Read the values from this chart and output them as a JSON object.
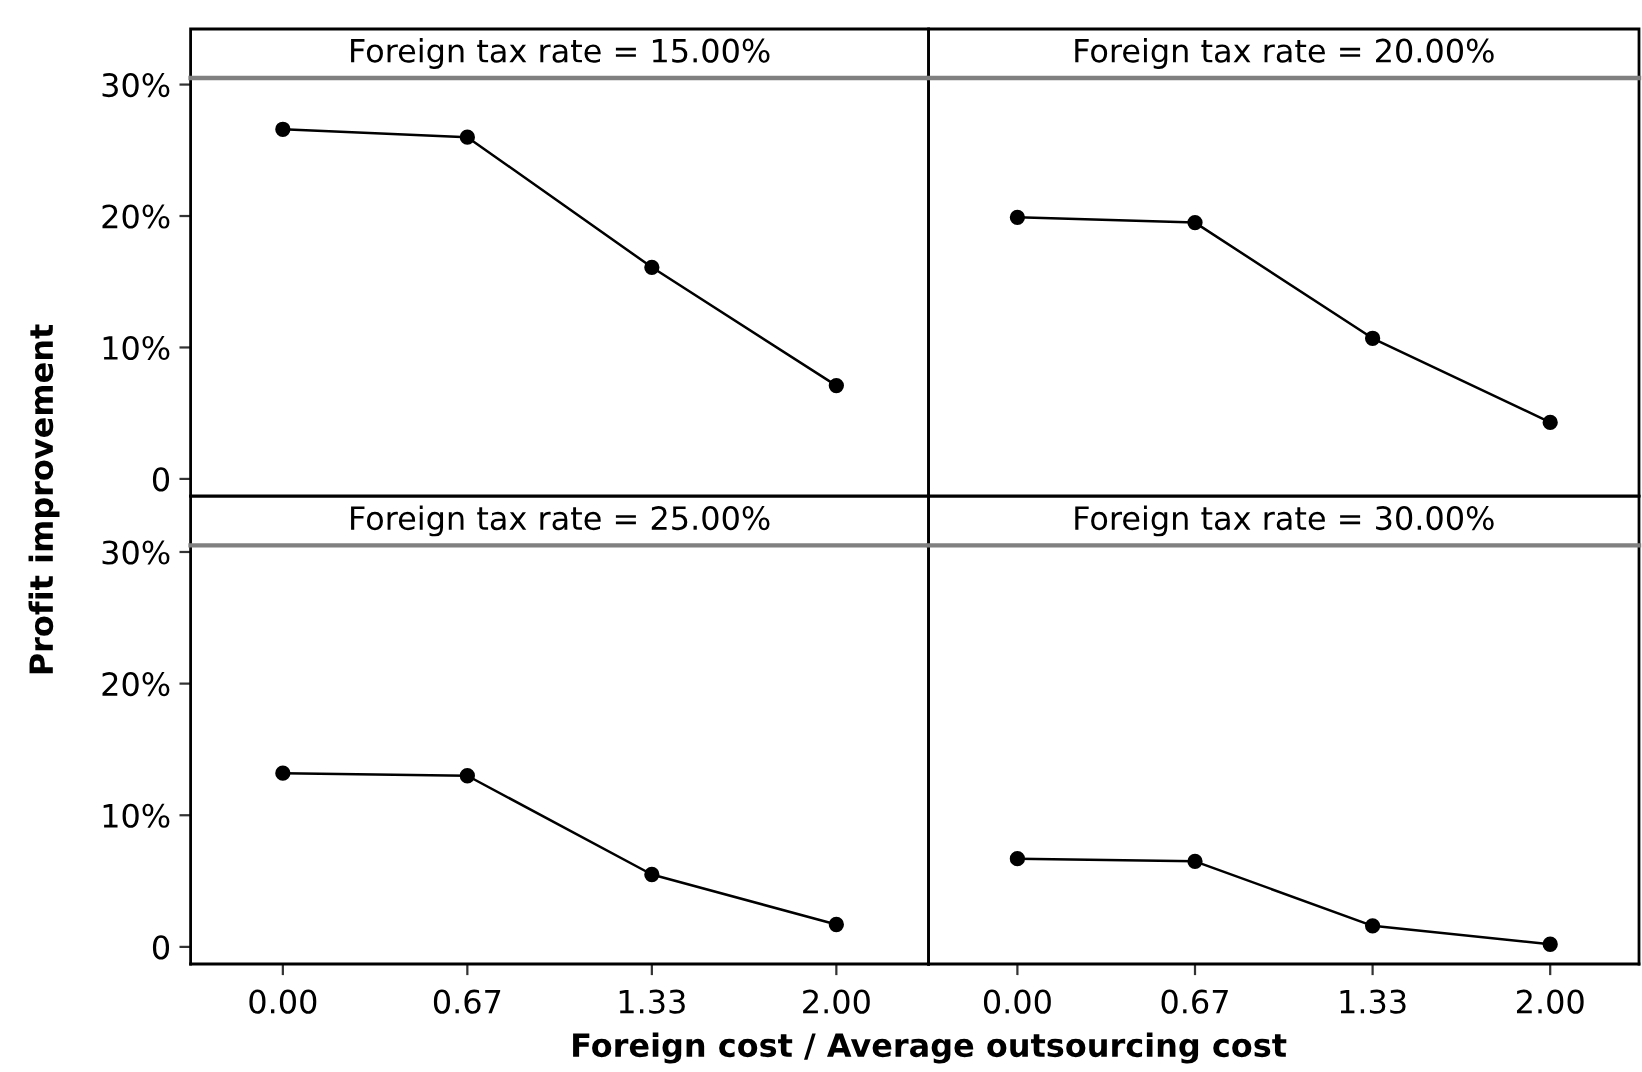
{
  "chart_data": [
    {
      "type": "line",
      "title": "Foreign tax rate = 15.00%",
      "ylabel": "Profit improvement",
      "categories": [
        "0.00",
        "0.67",
        "1.33",
        "2.00"
      ],
      "series": [
        {
          "color": "#000000",
          "values": [
            26.6,
            26.0,
            16.1,
            7.1
          ]
        }
      ],
      "ylim": [
        -1.3,
        30.5
      ],
      "yticks": [
        0,
        {
          "value": 10,
          "label": "10%"
        },
        {
          "value": 20,
          "label": "20%"
        },
        {
          "value": 30,
          "label": "30%"
        }
      ],
      "tick_labels": "y",
      "marker": "circle",
      "line_style": "solid"
    },
    {
      "type": "line",
      "title": "Foreign tax rate = 20.00%",
      "categories": [
        "0.00",
        "0.67",
        "1.33",
        "2.00"
      ],
      "series": [
        {
          "color": "#000000",
          "values": [
            19.9,
            19.5,
            10.7,
            4.3
          ]
        }
      ],
      "ylim": [
        -1.3,
        30.5
      ],
      "tick_labels": false,
      "marker": "circle",
      "line_style": "solid"
    },
    {
      "type": "line",
      "title": "Foreign tax rate = 25.00%",
      "xlabel": "Foreign cost / Average outsourcing cost",
      "categories": [
        "0.00",
        "0.67",
        "1.33",
        "2.00"
      ],
      "series": [
        {
          "color": "#000000",
          "values": [
            13.2,
            13.0,
            5.5,
            1.7
          ]
        }
      ],
      "ylim": [
        -1.3,
        30.5
      ],
      "yticks": [
        0,
        {
          "value": 10,
          "label": "10%"
        },
        {
          "value": 20,
          "label": "20%"
        },
        {
          "value": 30,
          "label": "30%"
        }
      ],
      "marker": "circle",
      "line_style": "solid"
    },
    {
      "type": "line",
      "title": "Foreign tax rate = 30.00%",
      "categories": [
        "0.00",
        "0.67",
        "1.33",
        "2.00"
      ],
      "series": [
        {
          "color": "#000000",
          "values": [
            6.7,
            6.5,
            1.6,
            0.2
          ]
        }
      ],
      "ylim": [
        -1.3,
        30.5
      ],
      "tick_labels": "x",
      "marker": "circle",
      "line_style": "solid"
    }
  ]
}
